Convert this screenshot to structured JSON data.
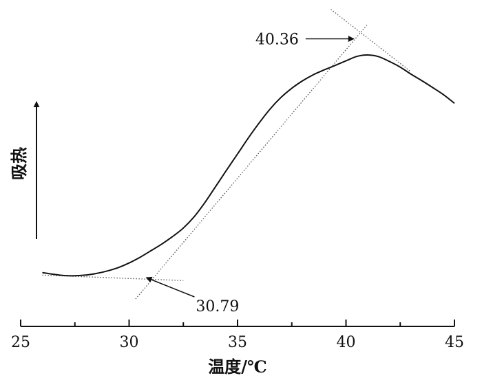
{
  "chart_data": {
    "type": "line",
    "xlabel": "温度/℃",
    "ylabel": "吸热",
    "xlim": [
      25,
      45
    ],
    "x_ticks": [
      "25",
      "30",
      "35",
      "40",
      "45"
    ],
    "y_axis_numeric": false,
    "grid": false,
    "colors": {
      "curve": "#111111",
      "tangent": "#555555",
      "axis": "#111111"
    },
    "series": [
      {
        "x": [
          26.0,
          26.5,
          27.0,
          27.5,
          28.0,
          28.5,
          29.0,
          29.5,
          30.0,
          30.5,
          31.0,
          31.5,
          32.0,
          32.5,
          33.0,
          33.5,
          34.0,
          34.5,
          35.0,
          35.5,
          36.0,
          36.5,
          37.0,
          37.5,
          38.0,
          38.5,
          39.0,
          39.5,
          40.0,
          40.5,
          41.0,
          41.5,
          42.0,
          42.5,
          43.0,
          43.5,
          44.0,
          44.5,
          45.0
        ],
        "y": [
          0.024,
          0.016,
          0.01,
          0.009,
          0.012,
          0.02,
          0.032,
          0.048,
          0.07,
          0.097,
          0.128,
          0.16,
          0.196,
          0.237,
          0.291,
          0.36,
          0.437,
          0.515,
          0.591,
          0.668,
          0.74,
          0.806,
          0.861,
          0.905,
          0.941,
          0.97,
          0.993,
          1.014,
          1.036,
          1.057,
          1.064,
          1.056,
          1.033,
          1.006,
          0.972,
          0.941,
          0.908,
          0.874,
          0.833
        ]
      }
    ],
    "tangents": [
      {
        "x": [
          26.0,
          32.5
        ],
        "y": [
          0.012,
          -0.014
        ]
      },
      {
        "x": [
          30.3,
          41.0
        ],
        "y": [
          -0.102,
          1.212
        ]
      },
      {
        "x": [
          39.3,
          43.0
        ],
        "y": [
          1.282,
          0.983
        ]
      }
    ],
    "annotations": [
      {
        "text": "30.79",
        "x": 30.79,
        "y": 0.0,
        "label_side": "below-right"
      },
      {
        "text": "40.36",
        "x": 40.36,
        "y": 1.141,
        "label_side": "left"
      }
    ],
    "side_arrow": "up"
  }
}
